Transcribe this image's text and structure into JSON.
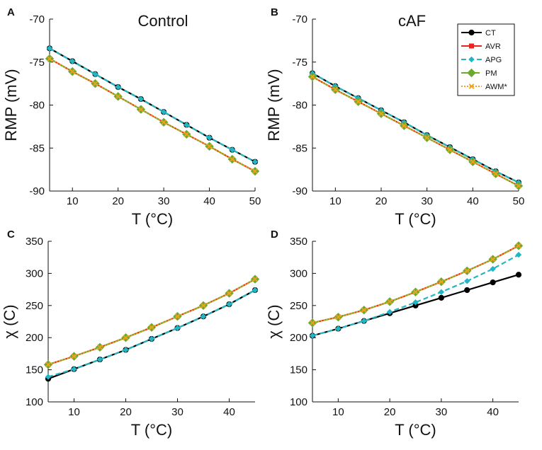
{
  "figure": {
    "panels": [
      "A",
      "B",
      "C",
      "D"
    ]
  },
  "legend": {
    "items": [
      {
        "name": "CT",
        "color": "#000000",
        "marker": "circle",
        "dash": "solid"
      },
      {
        "name": "AVR",
        "color": "#e8261f",
        "marker": "square",
        "dash": "solid"
      },
      {
        "name": "APG",
        "color": "#22b5c4",
        "marker": "diamond",
        "dash": "dashed"
      },
      {
        "name": "PM",
        "color": "#6aaa2e",
        "marker": "diamond-large",
        "dash": "dashdot"
      },
      {
        "name": "AWM*",
        "color": "#f0a21e",
        "marker": "x",
        "dash": "dotted"
      }
    ]
  },
  "chart_data": [
    {
      "panel": "A",
      "type": "line",
      "title": "Control",
      "xlabel": "T (°C)",
      "ylabel": "RMP (mV)",
      "xlim": [
        5,
        50
      ],
      "ylim": [
        -90,
        -70
      ],
      "xticks": [
        10,
        20,
        30,
        40,
        50
      ],
      "yticks": [
        -90,
        -85,
        -80,
        -75,
        -70
      ],
      "x": [
        5,
        10,
        15,
        20,
        25,
        30,
        35,
        40,
        45,
        50
      ],
      "series": [
        {
          "name": "CT",
          "values": [
            -73.4,
            -74.9,
            -76.4,
            -77.9,
            -79.3,
            -80.8,
            -82.3,
            -83.8,
            -85.2,
            -86.6
          ]
        },
        {
          "name": "AVR",
          "values": [
            -74.6,
            -76.1,
            -77.5,
            -79.0,
            -80.5,
            -82.0,
            -83.4,
            -84.8,
            -86.3,
            -87.7
          ]
        },
        {
          "name": "APG",
          "values": [
            -73.4,
            -74.9,
            -76.4,
            -77.9,
            -79.3,
            -80.8,
            -82.3,
            -83.8,
            -85.2,
            -86.6
          ]
        },
        {
          "name": "PM",
          "values": [
            -74.6,
            -76.1,
            -77.5,
            -79.0,
            -80.5,
            -82.0,
            -83.4,
            -84.8,
            -86.3,
            -87.7
          ]
        },
        {
          "name": "AWM*",
          "values": [
            -74.6,
            -76.1,
            -77.5,
            -79.0,
            -80.5,
            -82.0,
            -83.4,
            -84.8,
            -86.3,
            -87.7
          ]
        }
      ]
    },
    {
      "panel": "B",
      "type": "line",
      "title": "cAF",
      "xlabel": "T (°C)",
      "ylabel": "RMP (mV)",
      "xlim": [
        5,
        50
      ],
      "ylim": [
        -90,
        -70
      ],
      "xticks": [
        10,
        20,
        30,
        40,
        50
      ],
      "yticks": [
        -90,
        -85,
        -80,
        -75,
        -70
      ],
      "x": [
        5,
        10,
        15,
        20,
        25,
        30,
        35,
        40,
        45,
        50
      ],
      "series": [
        {
          "name": "CT",
          "values": [
            -76.3,
            -77.8,
            -79.2,
            -80.6,
            -82.0,
            -83.5,
            -84.9,
            -86.3,
            -87.7,
            -89.0
          ]
        },
        {
          "name": "AVR",
          "values": [
            -76.7,
            -78.2,
            -79.6,
            -81.0,
            -82.4,
            -83.8,
            -85.2,
            -86.6,
            -88.0,
            -89.4
          ]
        },
        {
          "name": "APG",
          "values": [
            -76.3,
            -77.8,
            -79.2,
            -80.6,
            -82.0,
            -83.5,
            -84.9,
            -86.3,
            -87.7,
            -89.0
          ]
        },
        {
          "name": "PM",
          "values": [
            -76.7,
            -78.2,
            -79.6,
            -81.0,
            -82.4,
            -83.8,
            -85.2,
            -86.6,
            -88.0,
            -89.4
          ]
        },
        {
          "name": "AWM*",
          "values": [
            -76.7,
            -78.2,
            -79.6,
            -81.0,
            -82.4,
            -83.8,
            -85.2,
            -86.6,
            -88.0,
            -89.4
          ]
        }
      ]
    },
    {
      "panel": "C",
      "type": "line",
      "title": "",
      "xlabel": "T (°C)",
      "ylabel": "χ (C)",
      "xlim": [
        5,
        45
      ],
      "ylim": [
        100,
        350
      ],
      "xticks": [
        10,
        20,
        30,
        40
      ],
      "yticks": [
        100,
        150,
        200,
        250,
        300,
        350
      ],
      "x": [
        5,
        10,
        15,
        20,
        25,
        30,
        35,
        40,
        45
      ],
      "series": [
        {
          "name": "CT",
          "values": [
            136,
            151,
            166,
            181,
            198,
            215,
            233,
            252,
            274
          ]
        },
        {
          "name": "AVR",
          "values": [
            158,
            171,
            185,
            200,
            216,
            233,
            250,
            269,
            291
          ]
        },
        {
          "name": "APG",
          "values": [
            139,
            151,
            166,
            181,
            198,
            215,
            233,
            252,
            274
          ]
        },
        {
          "name": "PM",
          "values": [
            158,
            171,
            185,
            200,
            216,
            233,
            250,
            269,
            291
          ]
        },
        {
          "name": "AWM*",
          "values": [
            158,
            171,
            185,
            200,
            216,
            233,
            250,
            269,
            291
          ]
        }
      ]
    },
    {
      "panel": "D",
      "type": "line",
      "title": "",
      "xlabel": "T (°C)",
      "ylabel": "χ (C)",
      "xlim": [
        5,
        45
      ],
      "ylim": [
        100,
        350
      ],
      "xticks": [
        10,
        20,
        30,
        40
      ],
      "yticks": [
        100,
        150,
        200,
        250,
        300,
        350
      ],
      "x": [
        5,
        10,
        15,
        20,
        25,
        30,
        35,
        40,
        45
      ],
      "series": [
        {
          "name": "CT",
          "values": [
            203,
            214,
            226,
            238,
            250,
            262,
            274,
            286,
            298
          ]
        },
        {
          "name": "AVR",
          "values": [
            223,
            232,
            243,
            256,
            271,
            287,
            304,
            322,
            343
          ]
        },
        {
          "name": "APG",
          "values": [
            203,
            214,
            226,
            240,
            255,
            271,
            288,
            307,
            329
          ]
        },
        {
          "name": "PM",
          "values": [
            223,
            232,
            243,
            256,
            271,
            287,
            304,
            322,
            343
          ]
        },
        {
          "name": "AWM*",
          "values": [
            223,
            232,
            243,
            256,
            271,
            287,
            304,
            322,
            343
          ]
        }
      ]
    }
  ]
}
